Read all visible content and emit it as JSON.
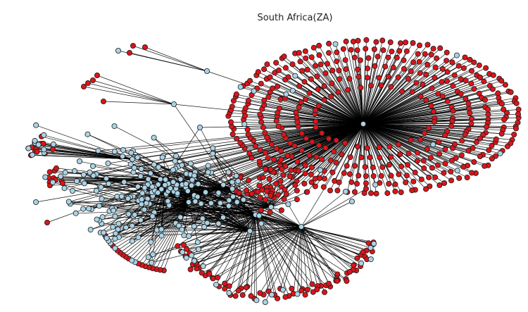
{
  "title": "South Africa(ZA)",
  "colors": {
    "background": "#ffffff",
    "edge": "#000000",
    "node_red": "#d9151b",
    "node_blue": "#a9d3e6",
    "node_outline": "#1a1a1a"
  },
  "legend": "none",
  "axes": "hidden"
}
